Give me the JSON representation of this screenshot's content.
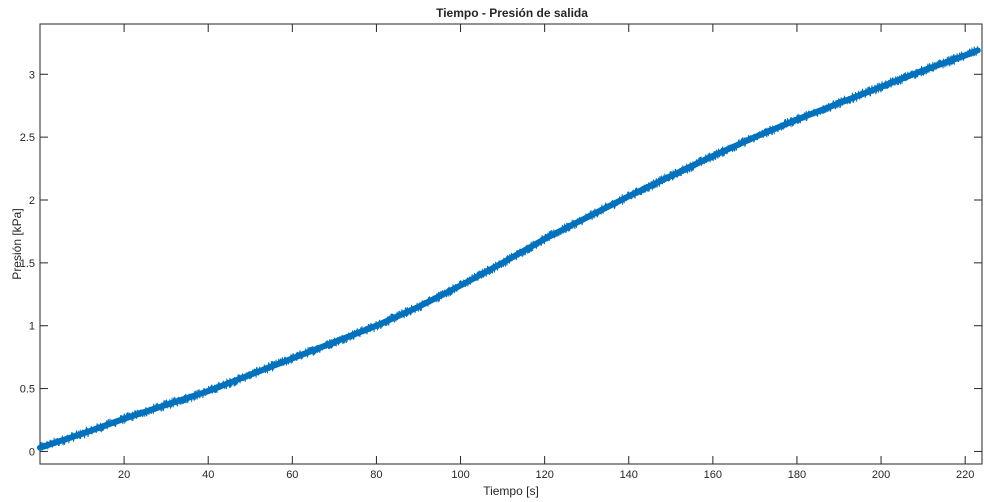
{
  "chart_data": {
    "type": "line",
    "title": "Tiempo - Presión de salida",
    "xlabel": "Tiempo [s]",
    "ylabel": "Presión [kPa]",
    "xlim": [
      0,
      224
    ],
    "ylim": [
      -0.1,
      3.4
    ],
    "xticks": [
      20,
      40,
      60,
      80,
      100,
      120,
      140,
      160,
      180,
      200,
      220
    ],
    "xtick_labels": [
      "20",
      "40",
      "60",
      "80",
      "100",
      "120",
      "140",
      "160",
      "180",
      "200",
      "220"
    ],
    "yticks": [
      0,
      0.5,
      1,
      1.5,
      2,
      2.5,
      3
    ],
    "ytick_labels": [
      "0",
      "0.5",
      "1",
      "1.5",
      "2",
      "2.5",
      "3"
    ],
    "grid": false,
    "series": [
      {
        "color": "#0072BD",
        "noise_band": 0.08,
        "x": [
          0,
          10,
          20,
          30,
          40,
          50,
          60,
          70,
          80,
          90,
          100,
          110,
          120,
          130,
          140,
          150,
          160,
          170,
          180,
          190,
          200,
          210,
          220,
          223
        ],
        "y": [
          0.03,
          0.14,
          0.26,
          0.37,
          0.48,
          0.61,
          0.74,
          0.87,
          1.0,
          1.15,
          1.32,
          1.5,
          1.69,
          1.86,
          2.03,
          2.19,
          2.35,
          2.5,
          2.64,
          2.77,
          2.9,
          3.03,
          3.15,
          3.19
        ]
      }
    ]
  }
}
